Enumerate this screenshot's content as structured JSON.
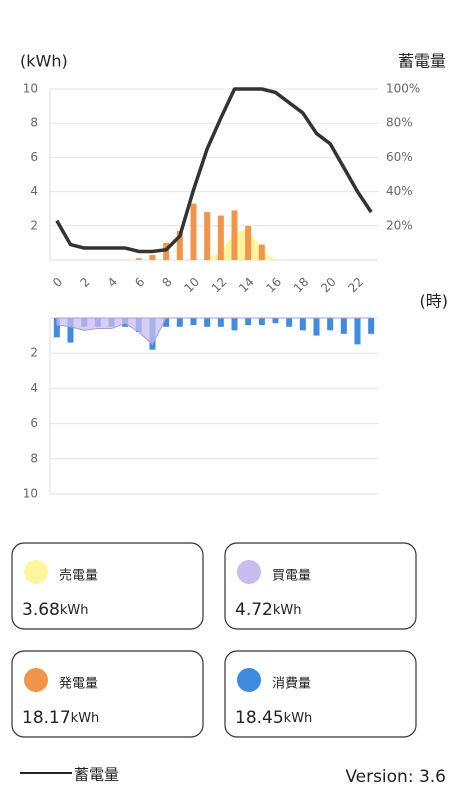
{
  "chart_data": [
    {
      "type": "combo",
      "y_axis_label": "(kWh)",
      "y2_axis_label": "蓄電量",
      "x_axis_label": "(時)",
      "categories": [
        "0",
        null,
        "2",
        null,
        "4",
        null,
        "6",
        null,
        "8",
        null,
        "10",
        null,
        "12",
        null,
        "14",
        null,
        "16",
        null,
        "18",
        null,
        "20",
        null,
        "22",
        null
      ],
      "ylim": [
        0,
        10
      ],
      "yticks": [
        2,
        4,
        6,
        8,
        10
      ],
      "y2lim": [
        0,
        100
      ],
      "y2ticks": [
        {
          "value": 20,
          "label": "20%"
        },
        {
          "value": 40,
          "label": "40%"
        },
        {
          "value": 60,
          "label": "60%"
        },
        {
          "value": 80,
          "label": "80%"
        },
        {
          "value": 100,
          "label": "100%"
        }
      ],
      "grid": true,
      "series": [
        {
          "name": "売電量",
          "type": "area",
          "color": "#fff59d",
          "values": [
            0,
            0,
            0,
            0,
            0,
            0,
            0,
            0,
            0,
            0,
            0,
            0,
            0.5,
            1.6,
            1.8,
            0.6,
            0,
            0,
            0,
            0,
            0,
            0,
            0,
            0
          ]
        },
        {
          "name": "発電量",
          "type": "bar",
          "color": "#f0954a",
          "values": [
            0,
            0,
            0,
            0,
            0,
            0,
            0.1,
            0.3,
            1.0,
            1.7,
            3.3,
            2.8,
            2.6,
            2.9,
            2.0,
            0.9,
            0,
            0,
            0,
            0,
            0,
            0,
            0,
            0
          ]
        },
        {
          "name": "蓄電量",
          "type": "line",
          "axis": "y2",
          "color": "#333333",
          "values": [
            23,
            9,
            7,
            7,
            7,
            7,
            5,
            5,
            6,
            14,
            41,
            65,
            83,
            100,
            100,
            100,
            98,
            92,
            86,
            74,
            68,
            54,
            40,
            28
          ]
        }
      ]
    },
    {
      "type": "combo",
      "inverted": true,
      "ylim": [
        0,
        10
      ],
      "yticks": [
        2,
        4,
        6,
        8,
        10
      ],
      "grid": true,
      "series": [
        {
          "name": "消費量",
          "type": "bar",
          "color": "#3f8be0",
          "values": [
            1.1,
            1.4,
            0.5,
            0.5,
            0.5,
            0.5,
            0.8,
            1.8,
            0.5,
            0.5,
            0.4,
            0.5,
            0.5,
            0.7,
            0.4,
            0.4,
            0.3,
            0.5,
            0.7,
            1.0,
            0.7,
            0.9,
            1.5,
            0.9
          ]
        },
        {
          "name": "買電量",
          "type": "area",
          "color": "#c9bdf0",
          "values": [
            0.4,
            0.5,
            0.7,
            0.6,
            0.6,
            0.3,
            0.8,
            1.5,
            0,
            0,
            0,
            0,
            0,
            0,
            0,
            0,
            0,
            0,
            0,
            0,
            0,
            0,
            0,
            0
          ]
        }
      ]
    }
  ],
  "cards": [
    {
      "value": "3.68",
      "unit": "kWh"
    },
    {
      "value": "4.72",
      "unit": "kWh"
    },
    {
      "value": "18.17",
      "unit": "kWh"
    },
    {
      "value": "18.45",
      "unit": "kWh"
    }
  ],
  "footer": {
    "version": "Version: 3.6"
  }
}
